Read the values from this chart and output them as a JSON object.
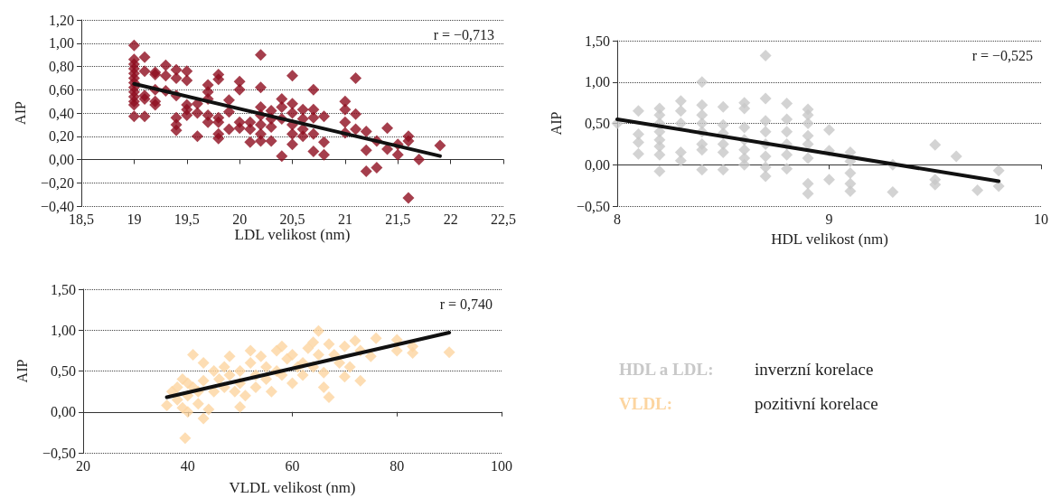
{
  "chart_data": [
    {
      "type": "scatter",
      "xlabel": "LDL velikost (nm)",
      "ylabel": "AIP",
      "annotations": [
        "r = −0,713"
      ],
      "xlim": [
        18.5,
        22.5
      ],
      "xticks": [
        {
          "value": 18.5,
          "label": "18,5"
        },
        {
          "value": 19,
          "label": "19"
        },
        {
          "value": 19.5,
          "label": "19,5"
        },
        {
          "value": 20,
          "label": "20"
        },
        {
          "value": 20.5,
          "label": "20,5"
        },
        {
          "value": 21,
          "label": "21"
        },
        {
          "value": 21.5,
          "label": "21,5"
        },
        {
          "value": 22,
          "label": "22"
        },
        {
          "value": 22.5,
          "label": "22,5"
        }
      ],
      "ylim": [
        -0.4,
        1.2
      ],
      "yticks": [
        {
          "value": -0.4,
          "label": "−0,40"
        },
        {
          "value": -0.2,
          "label": "−0,20"
        },
        {
          "value": 0,
          "label": "0,00"
        },
        {
          "value": 0.2,
          "label": "0,20"
        },
        {
          "value": 0.4,
          "label": "0,40"
        },
        {
          "value": 0.6,
          "label": "0,60"
        },
        {
          "value": 0.8,
          "label": "0,80"
        },
        {
          "value": 1,
          "label": "1,00"
        },
        {
          "value": 1.2,
          "label": "1,20"
        }
      ],
      "grid": "y",
      "series": [
        {
          "color": "#8e0e1f",
          "marker": "diamond",
          "x": [
            19,
            19,
            19,
            19,
            19,
            19,
            19,
            19,
            19,
            19,
            19,
            19,
            19,
            19.1,
            19.1,
            19.1,
            19.1,
            19.1,
            19.2,
            19.2,
            19.2,
            19.2,
            19.2,
            19.3,
            19.3,
            19.3,
            19.4,
            19.4,
            19.4,
            19.4,
            19.4,
            19.4,
            19.5,
            19.5,
            19.5,
            19.5,
            19.5,
            19.6,
            19.6,
            19.6,
            19.7,
            19.7,
            19.7,
            19.7,
            19.7,
            19.8,
            19.8,
            19.8,
            19.8,
            19.8,
            19.8,
            19.9,
            19.9,
            19.9,
            20,
            20,
            20,
            20,
            20.1,
            20.1,
            20.1,
            20.2,
            20.2,
            20.2,
            20.2,
            20.2,
            20.2,
            20.2,
            20.3,
            20.3,
            20.3,
            20.3,
            20.4,
            20.4,
            20.4,
            20.4,
            20.5,
            20.5,
            20.5,
            20.5,
            20.5,
            20.5,
            20.6,
            20.6,
            20.6,
            20.6,
            20.7,
            20.7,
            20.7,
            20.7,
            20.7,
            20.8,
            20.8,
            20.8,
            21,
            21,
            21,
            21,
            21.1,
            21.1,
            21.1,
            21.2,
            21.2,
            21.2,
            21.3,
            21.3,
            21.4,
            21.4,
            21.5,
            21.5,
            21.6,
            21.6,
            21.6,
            21.7,
            21.9
          ],
          "values": [
            0.98,
            0.86,
            0.82,
            0.78,
            0.74,
            0.7,
            0.66,
            0.62,
            0.58,
            0.54,
            0.5,
            0.47,
            0.37,
            0.88,
            0.76,
            0.55,
            0.52,
            0.37,
            0.75,
            0.73,
            0.6,
            0.5,
            0.47,
            0.81,
            0.72,
            0.59,
            0.77,
            0.7,
            0.55,
            0.36,
            0.3,
            0.25,
            0.76,
            0.68,
            0.47,
            0.43,
            0.38,
            0.48,
            0.4,
            0.2,
            0.64,
            0.58,
            0.52,
            0.38,
            0.32,
            0.73,
            0.69,
            0.36,
            0.32,
            0.22,
            0.18,
            0.51,
            0.41,
            0.26,
            0.67,
            0.6,
            0.32,
            0.27,
            0.32,
            0.26,
            0.15,
            0.9,
            0.62,
            0.45,
            0.38,
            0.3,
            0.22,
            0.16,
            0.42,
            0.35,
            0.28,
            0.16,
            0.52,
            0.45,
            0.35,
            0.03,
            0.72,
            0.48,
            0.4,
            0.3,
            0.22,
            0.13,
            0.43,
            0.35,
            0.26,
            0.2,
            0.6,
            0.43,
            0.36,
            0.22,
            0.07,
            0.37,
            0.15,
            0.04,
            0.5,
            0.43,
            0.32,
            0.23,
            0.7,
            0.39,
            0.26,
            0.24,
            0.08,
            -0.1,
            0.16,
            -0.07,
            0.27,
            0.09,
            0.13,
            0.04,
            0.2,
            0.16,
            -0.33,
            0,
            0.12
          ]
        },
        {
          "type": "line",
          "marker": "none",
          "color": "#111111",
          "x": [
            19,
            21.9
          ],
          "values": [
            0.65,
            0.03
          ]
        }
      ]
    },
    {
      "type": "scatter",
      "xlabel": "HDL velikost (nm)",
      "ylabel": "AIP",
      "annotations": [
        "r = −0,525"
      ],
      "xlim": [
        8,
        10
      ],
      "xticks": [
        8,
        9,
        10
      ],
      "ylim": [
        -0.5,
        1.5
      ],
      "yticks": [
        {
          "value": -0.5,
          "label": "−0,50"
        },
        {
          "value": 0,
          "label": "0,00"
        },
        {
          "value": 0.5,
          "label": "0,50"
        },
        {
          "value": 1,
          "label": "1,00"
        },
        {
          "value": 1.5,
          "label": "1,50"
        }
      ],
      "grid": "y",
      "series": [
        {
          "color": "#c8c8c8",
          "marker": "diamond",
          "x": [
            8,
            8.1,
            8.1,
            8.1,
            8.1,
            8.2,
            8.2,
            8.2,
            8.2,
            8.2,
            8.2,
            8.2,
            8.2,
            8.3,
            8.3,
            8.3,
            8.3,
            8.3,
            8.4,
            8.4,
            8.4,
            8.4,
            8.4,
            8.4,
            8.4,
            8.4,
            8.5,
            8.5,
            8.5,
            8.5,
            8.5,
            8.5,
            8.6,
            8.6,
            8.6,
            8.6,
            8.6,
            8.6,
            8.6,
            8.7,
            8.7,
            8.7,
            8.7,
            8.7,
            8.7,
            8.7,
            8.7,
            8.8,
            8.8,
            8.8,
            8.8,
            8.8,
            8.8,
            8.9,
            8.9,
            8.9,
            8.9,
            8.9,
            8.9,
            8.9,
            8.9,
            9,
            9,
            9,
            9.1,
            9.1,
            9.1,
            9.1,
            9.1,
            9.3,
            9.3,
            9.5,
            9.5,
            9.5,
            9.6,
            9.7,
            9.8,
            9.8
          ],
          "values": [
            0.5,
            0.65,
            0.37,
            0.27,
            0.13,
            0.68,
            0.6,
            0.5,
            0.4,
            0.3,
            0.22,
            0.12,
            -0.08,
            0.77,
            0.65,
            0.5,
            0.15,
            0.05,
            1,
            0.72,
            0.6,
            0.5,
            0.4,
            0.25,
            0.18,
            -0.06,
            0.7,
            0.48,
            0.38,
            0.25,
            0.15,
            -0.06,
            0.75,
            0.68,
            0.45,
            0.3,
            0.18,
            0.08,
            0,
            1.32,
            0.8,
            0.53,
            0.4,
            0.25,
            0.1,
            -0.03,
            -0.14,
            0.74,
            0.55,
            0.4,
            0.25,
            0.12,
            -0.05,
            0.67,
            0.6,
            0.5,
            0.35,
            0.25,
            0.08,
            -0.23,
            -0.35,
            0.42,
            0.17,
            -0.18,
            0.15,
            0.04,
            -0.1,
            -0.23,
            -0.32,
            0,
            -0.33,
            0.24,
            -0.18,
            -0.24,
            0.1,
            -0.31,
            -0.07,
            -0.26
          ]
        },
        {
          "type": "line",
          "marker": "none",
          "color": "#111111",
          "x": [
            8,
            9.8
          ],
          "values": [
            0.55,
            -0.2
          ]
        }
      ]
    },
    {
      "type": "scatter",
      "xlabel": "VLDL velikost (nm)",
      "ylabel": "AIP",
      "annotations": [
        "r = 0,740"
      ],
      "xlim": [
        20,
        100
      ],
      "xticks": [
        20,
        40,
        60,
        80,
        100
      ],
      "ylim": [
        -0.5,
        1.5
      ],
      "yticks": [
        {
          "value": -0.5,
          "label": "−0,50"
        },
        {
          "value": 0,
          "label": "0,00"
        },
        {
          "value": 0.5,
          "label": "0,50"
        },
        {
          "value": 1,
          "label": "1,00"
        },
        {
          "value": 1.5,
          "label": "1,50"
        }
      ],
      "grid": "y",
      "series": [
        {
          "color": "#fcd5a0",
          "marker": "diamond",
          "x": [
            36,
            37,
            38,
            38,
            39,
            39,
            40,
            40,
            40,
            39.5,
            41,
            41,
            42,
            42,
            43,
            43,
            43,
            44,
            45,
            45,
            46,
            47,
            47,
            48,
            48,
            49,
            50,
            50,
            50,
            51,
            52,
            52,
            53,
            53,
            54,
            55,
            55,
            56,
            57,
            57,
            58,
            58,
            59,
            60,
            60,
            61,
            62,
            62,
            63,
            64,
            64,
            65,
            65,
            66,
            66,
            67,
            67,
            68,
            69,
            70,
            70,
            71,
            72,
            73,
            73,
            75,
            76,
            80,
            80,
            83,
            83,
            90
          ],
          "values": [
            0.08,
            0.25,
            0.3,
            0.15,
            0.4,
            0.05,
            0.35,
            0.2,
            0,
            -0.32,
            0.7,
            0.3,
            0.25,
            0.1,
            0.6,
            0.38,
            -0.08,
            0.03,
            0.5,
            0.25,
            0.4,
            0.55,
            0.3,
            0.68,
            0.45,
            0.25,
            0.5,
            0.35,
            0.06,
            0.2,
            0.75,
            0.6,
            0.45,
            0.3,
            0.68,
            0.55,
            0.4,
            0.25,
            0.75,
            0.5,
            0.8,
            0.45,
            0.65,
            0.7,
            0.35,
            0.55,
            0.6,
            0.45,
            0.78,
            0.85,
            0.55,
            0.99,
            0.7,
            0.48,
            0.3,
            0.18,
            0.83,
            0.7,
            0.6,
            0.43,
            0.8,
            0.55,
            0.87,
            0.38,
            0.75,
            0.68,
            0.9,
            0.88,
            0.75,
            0.8,
            0.72,
            0.73
          ]
        },
        {
          "type": "line",
          "marker": "none",
          "color": "#111111",
          "x": [
            36,
            90
          ],
          "values": [
            0.18,
            0.97
          ]
        }
      ]
    },
    {
      "type": "other",
      "annotations": [
        "HDL a LDL:",
        "inverzní korelace",
        "VLDL:",
        "pozitivní korelace"
      ]
    }
  ]
}
